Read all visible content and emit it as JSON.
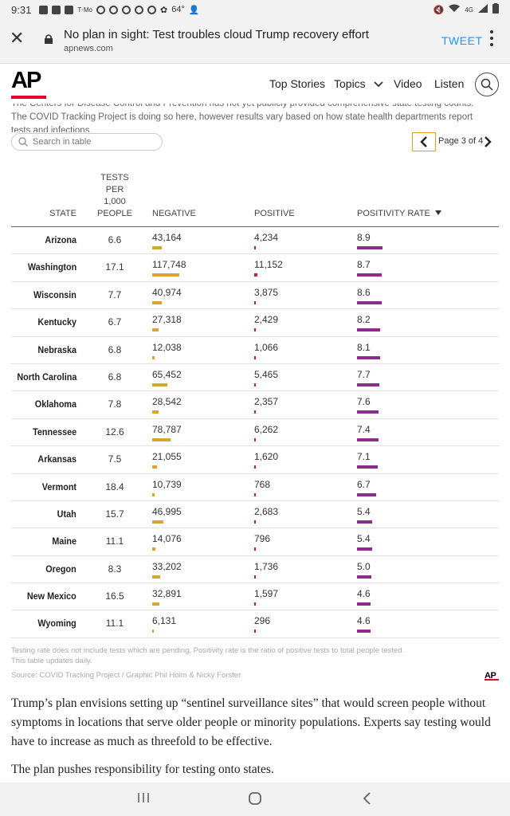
{
  "status_bar": {
    "time": "9:31",
    "temperature": "64°",
    "notification_icons": [
      "facebook-icon",
      "youtube-icon",
      "facebook-icon",
      "tmobile-icon",
      "chrome-icon",
      "chrome-icon",
      "chrome-icon",
      "chrome-icon",
      "chrome-icon",
      "settings-icon"
    ],
    "right_icons": [
      "mute-icon",
      "wifi-icon",
      "4g-icon",
      "signal-icon",
      "battery-icon"
    ]
  },
  "browser": {
    "page_title": "No plan in sight: Test troubles cloud Trump recovery effort",
    "domain": "apnews.com",
    "tweet_label": "TWEET"
  },
  "ap_nav": {
    "logo_text": "AP",
    "items": [
      "Top Stories",
      "Topics",
      "Video",
      "Listen"
    ]
  },
  "intro_text": "The Centers for Disease Control and Prevention has not yet publicly provided comprehensive state testing counts. The COVID Tracking Project is doing so here, however results vary based on how state health departments report tests and infections.",
  "table_controls": {
    "search_placeholder": "Search in table",
    "page_label": "Page 3 of 4"
  },
  "table": {
    "headers": {
      "state": "STATE",
      "tests_per_1000": [
        "TESTS",
        "PER",
        "1,000",
        "PEOPLE"
      ],
      "negative": "NEGATIVE",
      "positive": "POSITIVE",
      "positivity_rate": "POSITIVITY RATE"
    },
    "rows": [
      {
        "state": "Arizona",
        "tests": "6.6",
        "negative": "43,164",
        "positive": "4,234",
        "rate": "8.9",
        "neg_num": 43164,
        "pos_num": 4234,
        "rate_num": 8.9
      },
      {
        "state": "Washington",
        "tests": "17.1",
        "negative": "117,748",
        "positive": "11,152",
        "rate": "8.7",
        "neg_num": 117748,
        "pos_num": 11152,
        "rate_num": 8.7
      },
      {
        "state": "Wisconsin",
        "tests": "7.7",
        "negative": "40,974",
        "positive": "3,875",
        "rate": "8.6",
        "neg_num": 40974,
        "pos_num": 3875,
        "rate_num": 8.6
      },
      {
        "state": "Kentucky",
        "tests": "6.7",
        "negative": "27,318",
        "positive": "2,429",
        "rate": "8.2",
        "neg_num": 27318,
        "pos_num": 2429,
        "rate_num": 8.2
      },
      {
        "state": "Nebraska",
        "tests": "6.8",
        "negative": "12,038",
        "positive": "1,066",
        "rate": "8.1",
        "neg_num": 12038,
        "pos_num": 1066,
        "rate_num": 8.1
      },
      {
        "state": "North Carolina",
        "tests": "6.8",
        "negative": "65,452",
        "positive": "5,465",
        "rate": "7.7",
        "neg_num": 65452,
        "pos_num": 5465,
        "rate_num": 7.7
      },
      {
        "state": "Oklahoma",
        "tests": "7.8",
        "negative": "28,542",
        "positive": "2,357",
        "rate": "7.6",
        "neg_num": 28542,
        "pos_num": 2357,
        "rate_num": 7.6
      },
      {
        "state": "Tennessee",
        "tests": "12.6",
        "negative": "78,787",
        "positive": "6,262",
        "rate": "7.4",
        "neg_num": 78787,
        "pos_num": 6262,
        "rate_num": 7.4
      },
      {
        "state": "Arkansas",
        "tests": "7.5",
        "negative": "21,055",
        "positive": "1,620",
        "rate": "7.1",
        "neg_num": 21055,
        "pos_num": 1620,
        "rate_num": 7.1
      },
      {
        "state": "Vermont",
        "tests": "18.4",
        "negative": "10,739",
        "positive": "768",
        "rate": "6.7",
        "neg_num": 10739,
        "pos_num": 768,
        "rate_num": 6.7
      },
      {
        "state": "Utah",
        "tests": "15.7",
        "negative": "46,995",
        "positive": "2,683",
        "rate": "5.4",
        "neg_num": 46995,
        "pos_num": 2683,
        "rate_num": 5.4
      },
      {
        "state": "Maine",
        "tests": "11.1",
        "negative": "14,076",
        "positive": "796",
        "rate": "5.4",
        "neg_num": 14076,
        "pos_num": 796,
        "rate_num": 5.4
      },
      {
        "state": "Oregon",
        "tests": "8.3",
        "negative": "33,202",
        "positive": "1,736",
        "rate": "5.0",
        "neg_num": 33202,
        "pos_num": 1736,
        "rate_num": 5.0
      },
      {
        "state": "New Mexico",
        "tests": "16.5",
        "negative": "32,891",
        "positive": "1,597",
        "rate": "4.6",
        "neg_num": 32891,
        "pos_num": 1597,
        "rate_num": 4.6
      },
      {
        "state": "Wyoming",
        "tests": "11.1",
        "negative": "6,131",
        "positive": "296",
        "rate": "4.6",
        "neg_num": 6131,
        "pos_num": 296,
        "rate_num": 4.6
      }
    ],
    "colors": {
      "negative": "#d9a531",
      "positive": "#c4233d",
      "rate": "#8c2d8c"
    }
  },
  "footnotes": {
    "note1": "Testing rate does not include tests which are pending. Positivity rate is the ratio of positive tests to total people tested.",
    "note2": "This table updates daily.",
    "source": "Source: COVID Tracking Project / Graphic Phil Holm & Nicky Forster",
    "logo_text": "AP"
  },
  "article": {
    "para1": "Trump’s plan envisions setting up “sentinel surveillance sites” that would screen people without symptoms in locations that serve older people or minority populations. Experts say testing would have to increase as much as threefold to be effective.",
    "para2": "The plan pushes responsibility for testing onto states."
  }
}
